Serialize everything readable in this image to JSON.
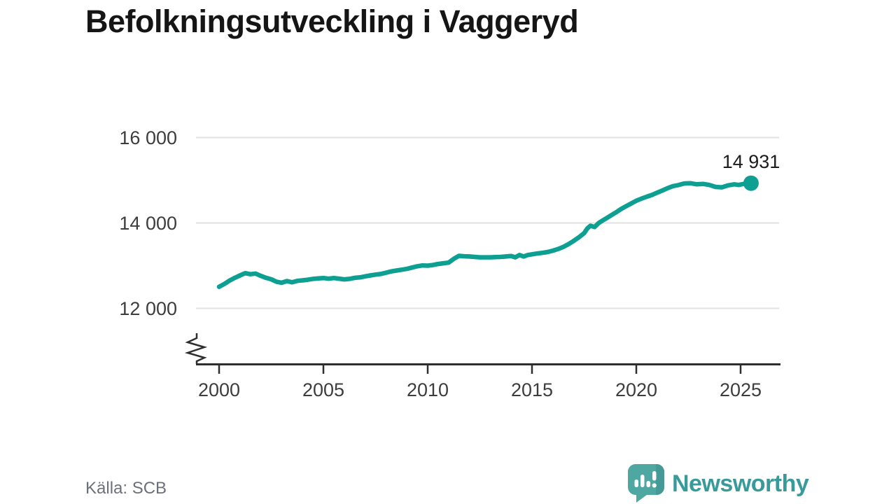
{
  "title": "Befolkningsutveckling i Vaggeryd",
  "source": "Källa: SCB",
  "branding": {
    "name": "Newsworthy"
  },
  "colors": {
    "line": "#0da092",
    "grid": "#e2e2e2",
    "axis": "#2e2e2e",
    "tick_text": "#3d3d3d",
    "title_text": "#151515",
    "source_text": "#6b7079",
    "brand_teal": "#389b99",
    "brand_icon_bg": "#4fa7a2",
    "brand_icon_shade": "#459a95"
  },
  "chart_data": {
    "type": "line",
    "title": "Befolkningsutveckling i Vaggeryd",
    "source_label": "Källa: SCB",
    "grid": "horizontal",
    "legend": "none",
    "axis_break": true,
    "x_ticks": [
      2000,
      2005,
      2010,
      2015,
      2020,
      2025
    ],
    "y_ticks": [
      {
        "value": 16000,
        "label": "16 000"
      },
      {
        "value": 14000,
        "label": "14 000"
      },
      {
        "value": 12000,
        "label": "12 000"
      }
    ],
    "xlim": [
      1998.9,
      2026.9
    ],
    "ylim": [
      12000,
      16000
    ],
    "series": [
      {
        "name": "Befolkning",
        "points": [
          [
            2000.0,
            12505
          ],
          [
            2000.25,
            12570
          ],
          [
            2000.5,
            12650
          ],
          [
            2000.75,
            12715
          ],
          [
            2001.0,
            12770
          ],
          [
            2001.25,
            12825
          ],
          [
            2001.5,
            12800
          ],
          [
            2001.75,
            12815
          ],
          [
            2002.0,
            12760
          ],
          [
            2002.25,
            12715
          ],
          [
            2002.5,
            12680
          ],
          [
            2002.75,
            12625
          ],
          [
            2003.0,
            12600
          ],
          [
            2003.25,
            12640
          ],
          [
            2003.5,
            12610
          ],
          [
            2003.75,
            12645
          ],
          [
            2004.0,
            12655
          ],
          [
            2004.25,
            12670
          ],
          [
            2004.5,
            12690
          ],
          [
            2004.75,
            12700
          ],
          [
            2005.0,
            12710
          ],
          [
            2005.25,
            12695
          ],
          [
            2005.5,
            12710
          ],
          [
            2005.75,
            12695
          ],
          [
            2006.0,
            12678
          ],
          [
            2006.25,
            12690
          ],
          [
            2006.5,
            12715
          ],
          [
            2006.75,
            12725
          ],
          [
            2007.0,
            12750
          ],
          [
            2007.25,
            12770
          ],
          [
            2007.5,
            12790
          ],
          [
            2007.75,
            12805
          ],
          [
            2008.0,
            12835
          ],
          [
            2008.25,
            12865
          ],
          [
            2008.5,
            12885
          ],
          [
            2008.75,
            12905
          ],
          [
            2009.0,
            12925
          ],
          [
            2009.25,
            12955
          ],
          [
            2009.5,
            12985
          ],
          [
            2009.75,
            13005
          ],
          [
            2010.0,
            13000
          ],
          [
            2010.25,
            13015
          ],
          [
            2010.5,
            13040
          ],
          [
            2010.75,
            13055
          ],
          [
            2011.0,
            13070
          ],
          [
            2011.25,
            13160
          ],
          [
            2011.5,
            13230
          ],
          [
            2011.75,
            13220
          ],
          [
            2012.0,
            13215
          ],
          [
            2012.25,
            13205
          ],
          [
            2012.5,
            13195
          ],
          [
            2012.75,
            13195
          ],
          [
            2013.0,
            13195
          ],
          [
            2013.25,
            13200
          ],
          [
            2013.5,
            13205
          ],
          [
            2013.75,
            13215
          ],
          [
            2014.0,
            13225
          ],
          [
            2014.2,
            13195
          ],
          [
            2014.4,
            13250
          ],
          [
            2014.6,
            13215
          ],
          [
            2014.8,
            13250
          ],
          [
            2015.0,
            13265
          ],
          [
            2015.25,
            13285
          ],
          [
            2015.5,
            13300
          ],
          [
            2015.75,
            13320
          ],
          [
            2016.0,
            13350
          ],
          [
            2016.25,
            13390
          ],
          [
            2016.5,
            13440
          ],
          [
            2016.75,
            13505
          ],
          [
            2017.0,
            13580
          ],
          [
            2017.25,
            13665
          ],
          [
            2017.5,
            13760
          ],
          [
            2017.65,
            13870
          ],
          [
            2017.8,
            13935
          ],
          [
            2018.0,
            13905
          ],
          [
            2018.2,
            14000
          ],
          [
            2018.4,
            14060
          ],
          [
            2018.6,
            14120
          ],
          [
            2018.8,
            14180
          ],
          [
            2019.0,
            14240
          ],
          [
            2019.25,
            14320
          ],
          [
            2019.5,
            14390
          ],
          [
            2019.75,
            14455
          ],
          [
            2020.0,
            14520
          ],
          [
            2020.25,
            14570
          ],
          [
            2020.5,
            14615
          ],
          [
            2020.75,
            14655
          ],
          [
            2021.0,
            14710
          ],
          [
            2021.25,
            14760
          ],
          [
            2021.5,
            14815
          ],
          [
            2021.75,
            14860
          ],
          [
            2022.0,
            14885
          ],
          [
            2022.3,
            14925
          ],
          [
            2022.6,
            14930
          ],
          [
            2022.9,
            14905
          ],
          [
            2023.2,
            14915
          ],
          [
            2023.5,
            14890
          ],
          [
            2023.8,
            14845
          ],
          [
            2024.1,
            14835
          ],
          [
            2024.4,
            14880
          ],
          [
            2024.7,
            14905
          ],
          [
            2024.9,
            14890
          ],
          [
            2025.1,
            14910
          ],
          [
            2025.3,
            14920
          ],
          [
            2025.5,
            14931
          ]
        ]
      }
    ],
    "end_point": {
      "year": 2025.5,
      "value": 14931,
      "label": "14 931"
    }
  }
}
